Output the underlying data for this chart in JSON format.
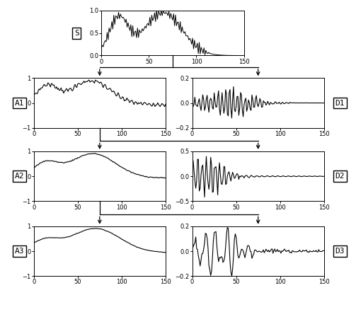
{
  "bg_color": "white",
  "signal_color": "black",
  "label_fontsize": 8,
  "tick_fontsize": 6,
  "ylim_S": [
    0,
    1
  ],
  "yticks_S": [
    0,
    0.5,
    1
  ],
  "ylim_A1": [
    -1,
    1
  ],
  "yticks_A1": [
    -1,
    0,
    1
  ],
  "ylim_A2": [
    -1,
    1
  ],
  "yticks_A2": [
    -1,
    0,
    1
  ],
  "ylim_A3": [
    -1,
    1
  ],
  "yticks_A3": [
    -1,
    0,
    1
  ],
  "ylim_D1": [
    -0.2,
    0.2
  ],
  "yticks_D1": [
    -0.2,
    0,
    0.2
  ],
  "ylim_D2": [
    -0.5,
    0.5
  ],
  "yticks_D2": [
    -0.5,
    0,
    0.5
  ],
  "ylim_D3": [
    -0.2,
    0.2
  ],
  "yticks_D3": [
    -0.2,
    0,
    0.2
  ],
  "xlim": [
    0,
    150
  ],
  "xticks": [
    0,
    50,
    100,
    150
  ]
}
